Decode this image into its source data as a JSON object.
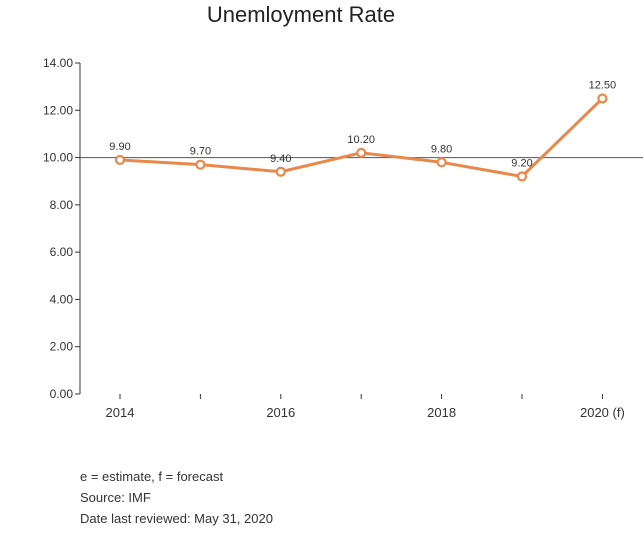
{
  "chart_data": {
    "type": "line",
    "title": "Unemloyment Rate",
    "x": [
      "2014",
      "2015",
      "2016",
      "2017",
      "2018",
      "2019",
      "2020 (f)"
    ],
    "tick_labels_shown": [
      "2014",
      "",
      "2016",
      "",
      "2018",
      "",
      "2020 (f)"
    ],
    "values": [
      9.9,
      9.7,
      9.4,
      10.2,
      9.8,
      9.2,
      12.5
    ],
    "data_labels": [
      "9.90",
      "9.70",
      "9.40",
      "10.20",
      "9.80",
      "9.20",
      "12.50"
    ],
    "y_ticks": [
      "0.00",
      "2.00",
      "4.00",
      "6.00",
      "8.00",
      "10.00",
      "12.00",
      "14.00"
    ],
    "ylim": [
      0,
      14
    ],
    "reference_line": 10,
    "grid": false,
    "legend": "none",
    "xlabel": "",
    "ylabel": "",
    "colors": {
      "line": "#E8884A",
      "reference": "#555555",
      "axis": "#333333"
    }
  },
  "footnotes": {
    "estimate_note": "e = estimate, f = forecast",
    "source": "Source: IMF",
    "reviewed": "Date last reviewed: May 31, 2020"
  }
}
